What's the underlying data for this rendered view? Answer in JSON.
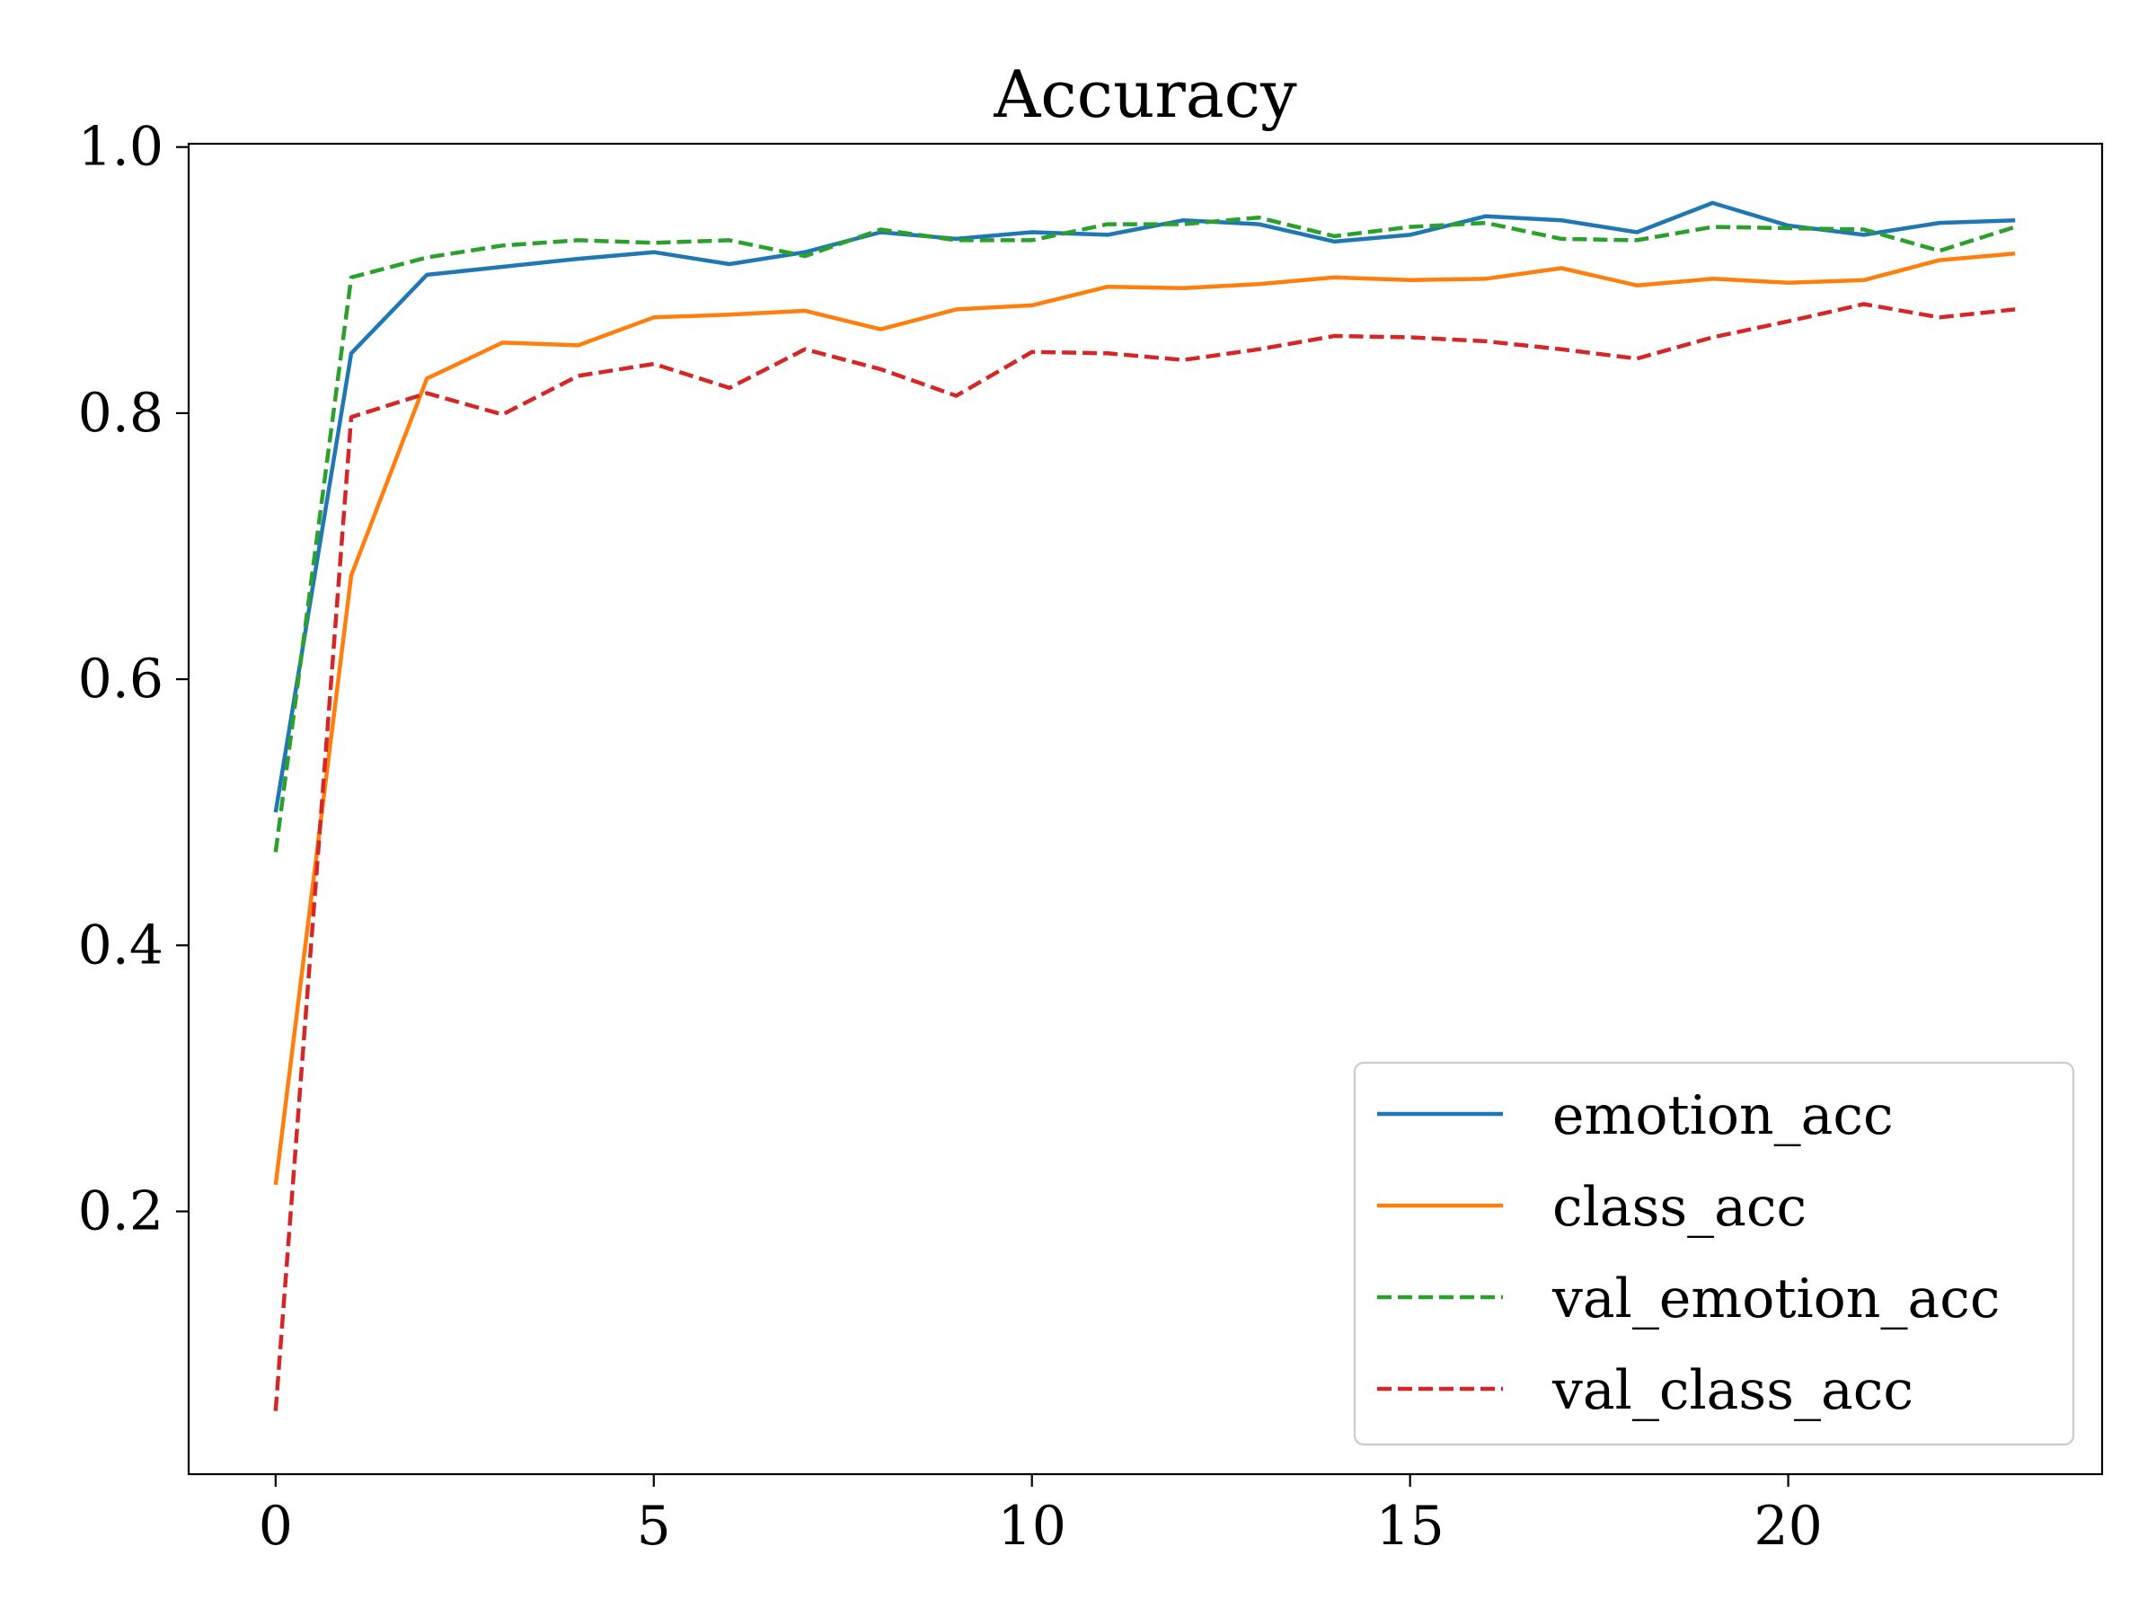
{
  "chart_data": {
    "type": "line",
    "title": "Accuracy",
    "xlabel": "",
    "ylabel": "",
    "xlim": [
      -1.15,
      24.15
    ],
    "ylim": [
      0.0025,
      1.0025
    ],
    "xticks": [
      0,
      5,
      10,
      15,
      20
    ],
    "yticks": [
      0.2,
      0.4,
      0.6,
      0.8,
      1.0
    ],
    "xtick_labels": [
      "0",
      "5",
      "10",
      "15",
      "20"
    ],
    "ytick_labels": [
      "0.2",
      "0.4",
      "0.6",
      "0.8",
      "1.0"
    ],
    "grid": false,
    "legend_position": "lower-right",
    "x": [
      0,
      1,
      2,
      3,
      4,
      5,
      6,
      7,
      8,
      9,
      10,
      11,
      12,
      13,
      14,
      15,
      16,
      17,
      18,
      19,
      20,
      21,
      22,
      23
    ],
    "series": [
      {
        "name": "emotion_acc",
        "color": "#1f77b4",
        "dash": "solid",
        "values": [
          0.5,
          0.845,
          0.904,
          0.91,
          0.916,
          0.921,
          0.912,
          0.921,
          0.936,
          0.931,
          0.936,
          0.934,
          0.945,
          0.942,
          0.929,
          0.934,
          0.948,
          0.945,
          0.936,
          0.958,
          0.941,
          0.934,
          0.943,
          0.945
        ]
      },
      {
        "name": "class_acc",
        "color": "#ff7f0e",
        "dash": "solid",
        "values": [
          0.22,
          0.678,
          0.826,
          0.853,
          0.851,
          0.872,
          0.874,
          0.877,
          0.863,
          0.878,
          0.881,
          0.895,
          0.894,
          0.897,
          0.902,
          0.9,
          0.901,
          0.909,
          0.896,
          0.901,
          0.898,
          0.9,
          0.915,
          0.92
        ]
      },
      {
        "name": "val_emotion_acc",
        "color": "#2ca02c",
        "dash": "dashed",
        "values": [
          0.47,
          0.902,
          0.917,
          0.926,
          0.93,
          0.928,
          0.93,
          0.918,
          0.938,
          0.93,
          0.93,
          0.942,
          0.942,
          0.947,
          0.933,
          0.94,
          0.943,
          0.931,
          0.93,
          0.94,
          0.939,
          0.938,
          0.922,
          0.94
        ]
      },
      {
        "name": "val_class_acc",
        "color": "#d62728",
        "dash": "dashed",
        "values": [
          0.05,
          0.797,
          0.815,
          0.799,
          0.828,
          0.837,
          0.819,
          0.848,
          0.833,
          0.813,
          0.846,
          0.845,
          0.84,
          0.848,
          0.858,
          0.857,
          0.854,
          0.848,
          0.841,
          0.857,
          0.869,
          0.882,
          0.872,
          0.878
        ]
      }
    ]
  }
}
